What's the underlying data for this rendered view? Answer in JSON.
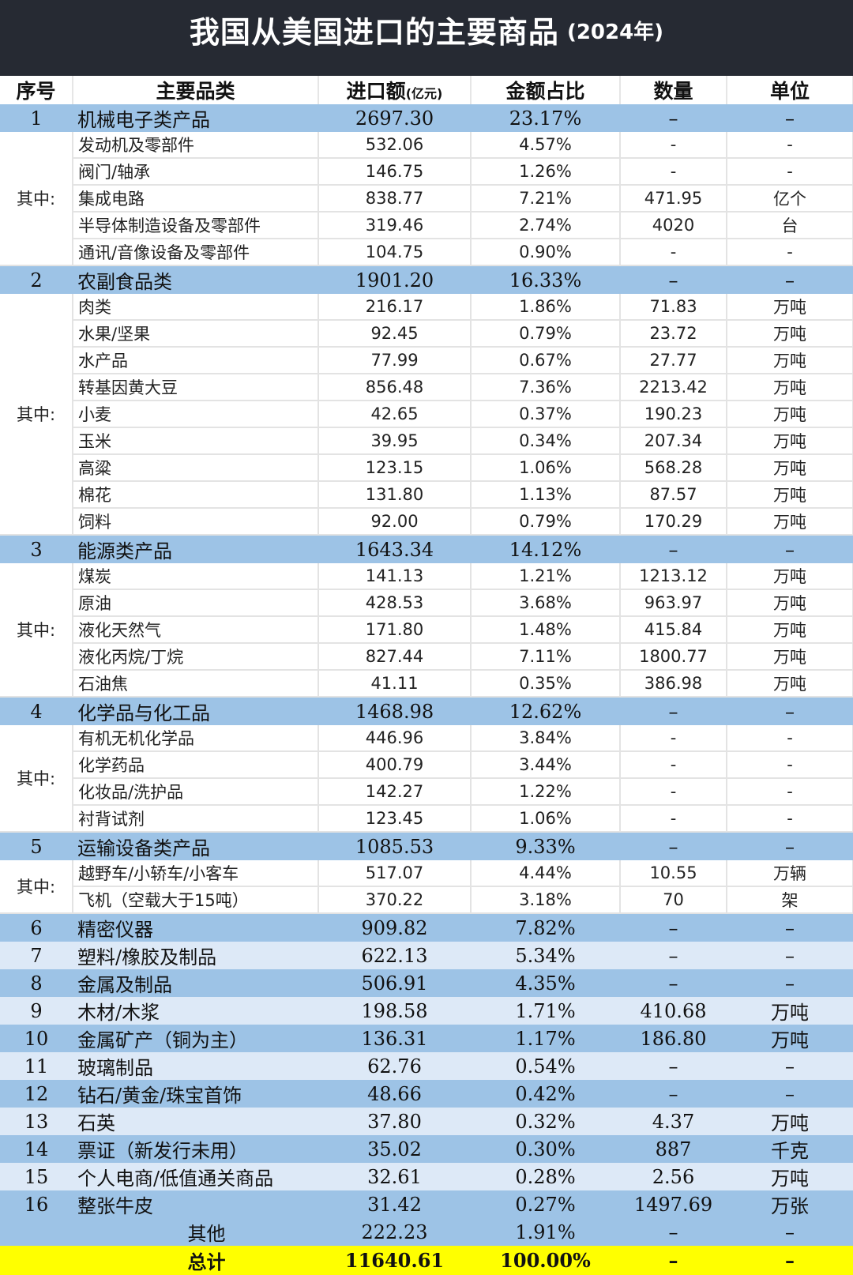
{
  "title": "我国从美国进口的主要商品",
  "title_year": "(2024年)",
  "headers": {
    "no": "序号",
    "category": "主要品类",
    "amount": "进口额",
    "amount_unit": "(亿元)",
    "share": "金额占比",
    "quantity": "数量",
    "unit": "单位"
  },
  "qizhong_label": "其中:",
  "sections": [
    {
      "no": "1",
      "name": "机械电子类产品",
      "amount": "2697.30",
      "share": "23.17%",
      "quantity": "–",
      "unit": "–",
      "subs": [
        {
          "name": "发动机及零部件",
          "amount": "532.06",
          "share": "4.57%",
          "quantity": "-",
          "unit": "-"
        },
        {
          "name": "阀门/轴承",
          "amount": "146.75",
          "share": "1.26%",
          "quantity": "-",
          "unit": "-"
        },
        {
          "name": "集成电路",
          "amount": "838.77",
          "share": "7.21%",
          "quantity": "471.95",
          "unit": "亿个"
        },
        {
          "name": "半导体制造设备及零部件",
          "amount": "319.46",
          "share": "2.74%",
          "quantity": "4020",
          "unit": "台"
        },
        {
          "name": "通讯/音像设备及零部件",
          "amount": "104.75",
          "share": "0.90%",
          "quantity": "-",
          "unit": "-"
        }
      ]
    },
    {
      "no": "2",
      "name": "农副食品类",
      "amount": "1901.20",
      "share": "16.33%",
      "quantity": "–",
      "unit": "–",
      "subs": [
        {
          "name": "肉类",
          "amount": "216.17",
          "share": "1.86%",
          "quantity": "71.83",
          "unit": "万吨"
        },
        {
          "name": "水果/坚果",
          "amount": "92.45",
          "share": "0.79%",
          "quantity": "23.72",
          "unit": "万吨"
        },
        {
          "name": "水产品",
          "amount": "77.99",
          "share": "0.67%",
          "quantity": "27.77",
          "unit": "万吨"
        },
        {
          "name": "转基因黄大豆",
          "amount": "856.48",
          "share": "7.36%",
          "quantity": "2213.42",
          "unit": "万吨"
        },
        {
          "name": "小麦",
          "amount": "42.65",
          "share": "0.37%",
          "quantity": "190.23",
          "unit": "万吨"
        },
        {
          "name": "玉米",
          "amount": "39.95",
          "share": "0.34%",
          "quantity": "207.34",
          "unit": "万吨"
        },
        {
          "name": "高粱",
          "amount": "123.15",
          "share": "1.06%",
          "quantity": "568.28",
          "unit": "万吨"
        },
        {
          "name": "棉花",
          "amount": "131.80",
          "share": "1.13%",
          "quantity": "87.57",
          "unit": "万吨"
        },
        {
          "name": "饲料",
          "amount": "92.00",
          "share": "0.79%",
          "quantity": "170.29",
          "unit": "万吨"
        }
      ]
    },
    {
      "no": "3",
      "name": "能源类产品",
      "amount": "1643.34",
      "share": "14.12%",
      "quantity": "–",
      "unit": "–",
      "subs": [
        {
          "name": "煤炭",
          "amount": "141.13",
          "share": "1.21%",
          "quantity": "1213.12",
          "unit": "万吨"
        },
        {
          "name": "原油",
          "amount": "428.53",
          "share": "3.68%",
          "quantity": "963.97",
          "unit": "万吨"
        },
        {
          "name": "液化天然气",
          "amount": "171.80",
          "share": "1.48%",
          "quantity": "415.84",
          "unit": "万吨"
        },
        {
          "name": "液化丙烷/丁烷",
          "amount": "827.44",
          "share": "7.11%",
          "quantity": "1800.77",
          "unit": "万吨"
        },
        {
          "name": "石油焦",
          "amount": "41.11",
          "share": "0.35%",
          "quantity": "386.98",
          "unit": "万吨"
        }
      ]
    },
    {
      "no": "4",
      "name": "化学品与化工品",
      "amount": "1468.98",
      "share": "12.62%",
      "quantity": "–",
      "unit": "–",
      "subs": [
        {
          "name": "有机无机化学品",
          "amount": "446.96",
          "share": "3.84%",
          "quantity": "-",
          "unit": "-"
        },
        {
          "name": "化学药品",
          "amount": "400.79",
          "share": "3.44%",
          "quantity": "-",
          "unit": "-"
        },
        {
          "name": "化妆品/洗护品",
          "amount": "142.27",
          "share": "1.22%",
          "quantity": "-",
          "unit": "-"
        },
        {
          "name": "衬背试剂",
          "amount": "123.45",
          "share": "1.06%",
          "quantity": "-",
          "unit": "-"
        }
      ]
    },
    {
      "no": "5",
      "name": "运输设备类产品",
      "amount": "1085.53",
      "share": "9.33%",
      "quantity": "–",
      "unit": "–",
      "subs": [
        {
          "name": "越野车/小轿车/小客车",
          "amount": "517.07",
          "share": "4.44%",
          "quantity": "10.55",
          "unit": "万辆"
        },
        {
          "name": "飞机（空载大于15吨）",
          "amount": "370.22",
          "share": "3.18%",
          "quantity": "70",
          "unit": "架"
        }
      ]
    }
  ],
  "simple_rows": [
    {
      "no": "6",
      "name": "精密仪器",
      "amount": "909.82",
      "share": "7.82%",
      "quantity": "–",
      "unit": "–"
    },
    {
      "no": "7",
      "name": "塑料/橡胶及制品",
      "amount": "622.13",
      "share": "5.34%",
      "quantity": "–",
      "unit": "–"
    },
    {
      "no": "8",
      "name": "金属及制品",
      "amount": "506.91",
      "share": "4.35%",
      "quantity": "–",
      "unit": "–"
    },
    {
      "no": "9",
      "name": "木材/木浆",
      "amount": "198.58",
      "share": "1.71%",
      "quantity": "410.68",
      "unit": "万吨"
    },
    {
      "no": "10",
      "name": "金属矿产（铜为主）",
      "amount": "136.31",
      "share": "1.17%",
      "quantity": "186.80",
      "unit": "万吨"
    },
    {
      "no": "11",
      "name": "玻璃制品",
      "amount": "62.76",
      "share": "0.54%",
      "quantity": "–",
      "unit": "–"
    },
    {
      "no": "12",
      "name": "钻石/黄金/珠宝首饰",
      "amount": "48.66",
      "share": "0.42%",
      "quantity": "–",
      "unit": "–"
    },
    {
      "no": "13",
      "name": "石英",
      "amount": "37.80",
      "share": "0.32%",
      "quantity": "4.37",
      "unit": "万吨"
    },
    {
      "no": "14",
      "name": "票证（新发行未用）",
      "amount": "35.02",
      "share": "0.30%",
      "quantity": "887",
      "unit": "千克"
    },
    {
      "no": "15",
      "name": "个人电商/低值通关商品",
      "amount": "32.61",
      "share": "0.28%",
      "quantity": "2.56",
      "unit": "万吨"
    },
    {
      "no": "16",
      "name": "整张牛皮",
      "amount": "31.42",
      "share": "0.27%",
      "quantity": "1497.69",
      "unit": "万张"
    }
  ],
  "other": {
    "name": "其他",
    "amount": "222.23",
    "share": "1.91%",
    "quantity": "–",
    "unit": "–"
  },
  "total": {
    "name": "总计",
    "amount": "11640.61",
    "share": "100.00%",
    "quantity": "–",
    "unit": "–"
  },
  "colors": {
    "title_bg": "#262a33",
    "main_row": "#9dc3e6",
    "light_row": "#dde9f7",
    "total_row": "#ffff00"
  }
}
